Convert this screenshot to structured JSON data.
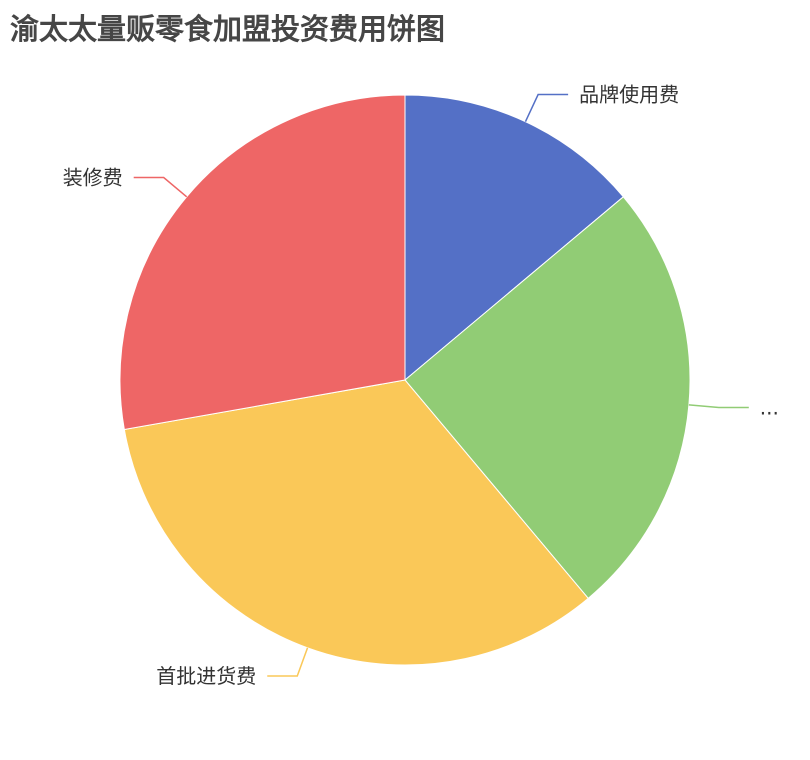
{
  "chart_data": {
    "type": "pie",
    "title": "渝太太量贩零食加盟投资费用饼图",
    "start_angle": 90,
    "direction": "clockwise",
    "slices": [
      {
        "label": "品牌使用费",
        "value": 5,
        "color": "#5470c6"
      },
      {
        "label": "...",
        "value": 9,
        "color": "#91cc75"
      },
      {
        "label": "首批进货费",
        "value": 12,
        "color": "#fac858"
      },
      {
        "label": "装修费",
        "value": 10,
        "color": "#ee6666"
      }
    ],
    "legend": "none"
  }
}
